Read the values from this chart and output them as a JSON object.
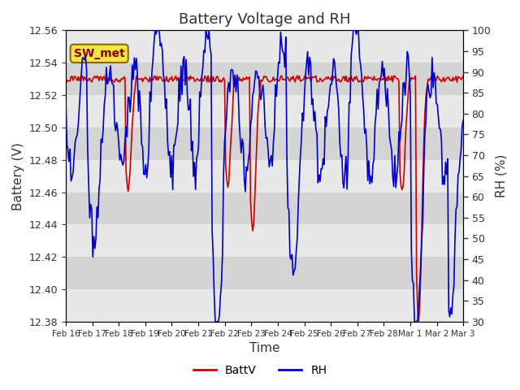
{
  "title": "Battery Voltage and RH",
  "xlabel": "Time",
  "ylabel_left": "Battery (V)",
  "ylabel_right": "RH (%)",
  "station_label": "SW_met",
  "ylim_left": [
    12.38,
    12.56
  ],
  "ylim_right": [
    30,
    100
  ],
  "yticks_left": [
    12.38,
    12.4,
    12.42,
    12.44,
    12.46,
    12.48,
    12.5,
    12.52,
    12.54,
    12.56
  ],
  "yticks_right": [
    30,
    35,
    40,
    45,
    50,
    55,
    60,
    65,
    70,
    75,
    80,
    85,
    90,
    95,
    100
  ],
  "xtick_labels": [
    "Feb 16",
    "Feb 17",
    "Feb 18",
    "Feb 19",
    "Feb 20",
    "Feb 21",
    "Feb 22",
    "Feb 23",
    "Feb 24",
    "Feb 25",
    "Feb 26",
    "Feb 27",
    "Feb 28",
    "Mar 1",
    "Mar 2",
    "Mar 3"
  ],
  "color_battv": "#cc0000",
  "color_rh": "#0000cc",
  "legend_labels": [
    "BattV",
    "RH"
  ],
  "band_colors": [
    "#e8e8e8",
    "#d4d4d4"
  ],
  "title_fontsize": 13,
  "axis_label_fontsize": 11
}
